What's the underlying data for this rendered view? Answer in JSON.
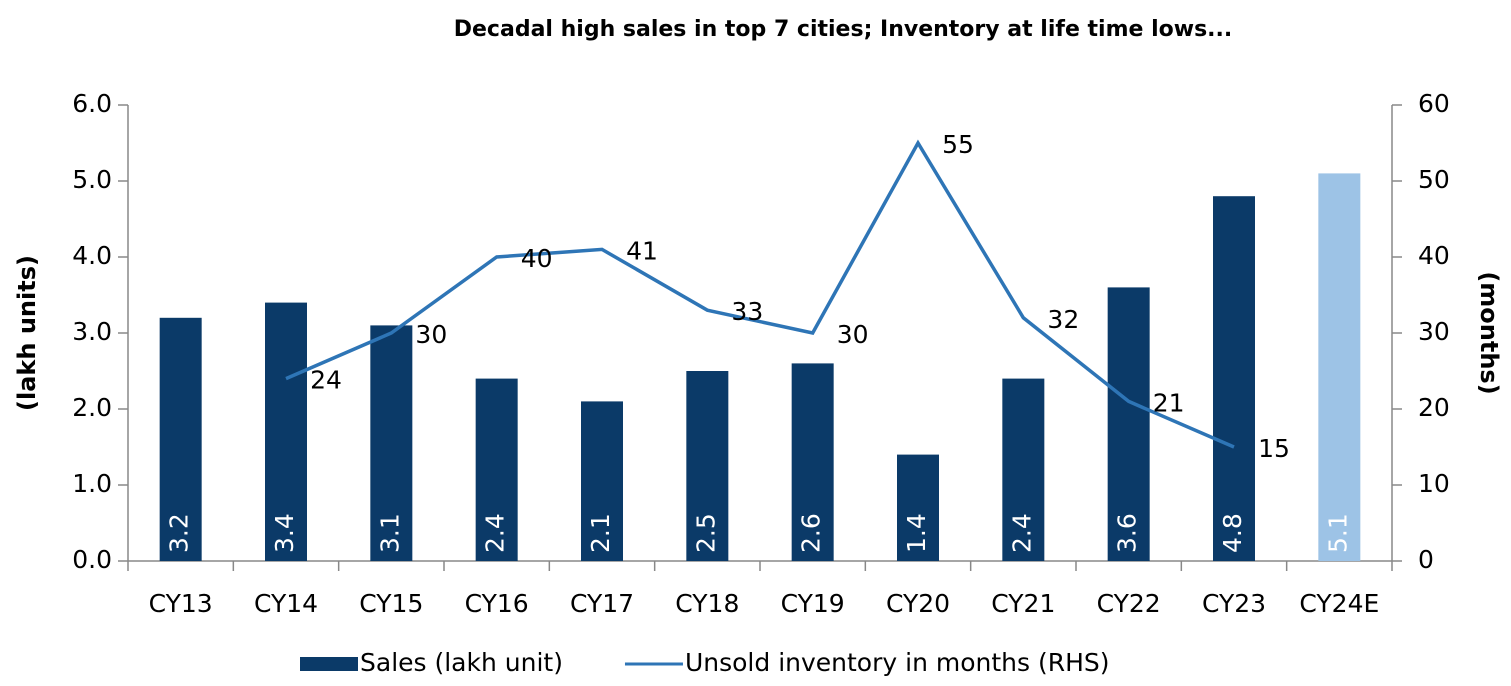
{
  "chart_data": {
    "type": "bar",
    "title": "Decadal high sales in top 7 cities; Inventory at life time lows...",
    "ylabel": "(lakh units)",
    "y2label": "(months)",
    "categories": [
      "CY13",
      "CY14",
      "CY15",
      "CY16",
      "CY17",
      "CY18",
      "CY19",
      "CY20",
      "CY21",
      "CY22",
      "CY23",
      "CY24E"
    ],
    "series": [
      {
        "name": "Sales (lakh unit)",
        "type": "bar",
        "color": "#0b3a68",
        "colors": [
          "#0b3a68",
          "#0b3a68",
          "#0b3a68",
          "#0b3a68",
          "#0b3a68",
          "#0b3a68",
          "#0b3a68",
          "#0b3a68",
          "#0b3a68",
          "#0b3a68",
          "#0b3a68",
          "#9dc3e6"
        ],
        "values": [
          3.2,
          3.4,
          3.1,
          2.4,
          2.1,
          2.5,
          2.6,
          1.4,
          2.4,
          3.6,
          4.8,
          5.1
        ]
      },
      {
        "name": "Unsold inventory in months (RHS)",
        "type": "line",
        "axis": "y2",
        "color": "#2e75b6",
        "values": [
          null,
          24,
          30,
          40,
          41,
          33,
          30,
          55,
          32,
          21,
          15,
          null
        ]
      }
    ],
    "ylim": [
      0,
      6
    ],
    "yticks": [
      {
        "value": 0,
        "label": "0.0"
      },
      {
        "value": 1,
        "label": "1.0"
      },
      {
        "value": 2,
        "label": "2.0"
      },
      {
        "value": 3,
        "label": "3.0"
      },
      {
        "value": 4,
        "label": "4.0"
      },
      {
        "value": 5,
        "label": "5.0"
      },
      {
        "value": 6,
        "label": "6.0"
      }
    ],
    "y2lim": [
      0,
      60
    ],
    "y2ticks": [
      0,
      10,
      20,
      30,
      40,
      50,
      60
    ],
    "legend": "bottom"
  }
}
